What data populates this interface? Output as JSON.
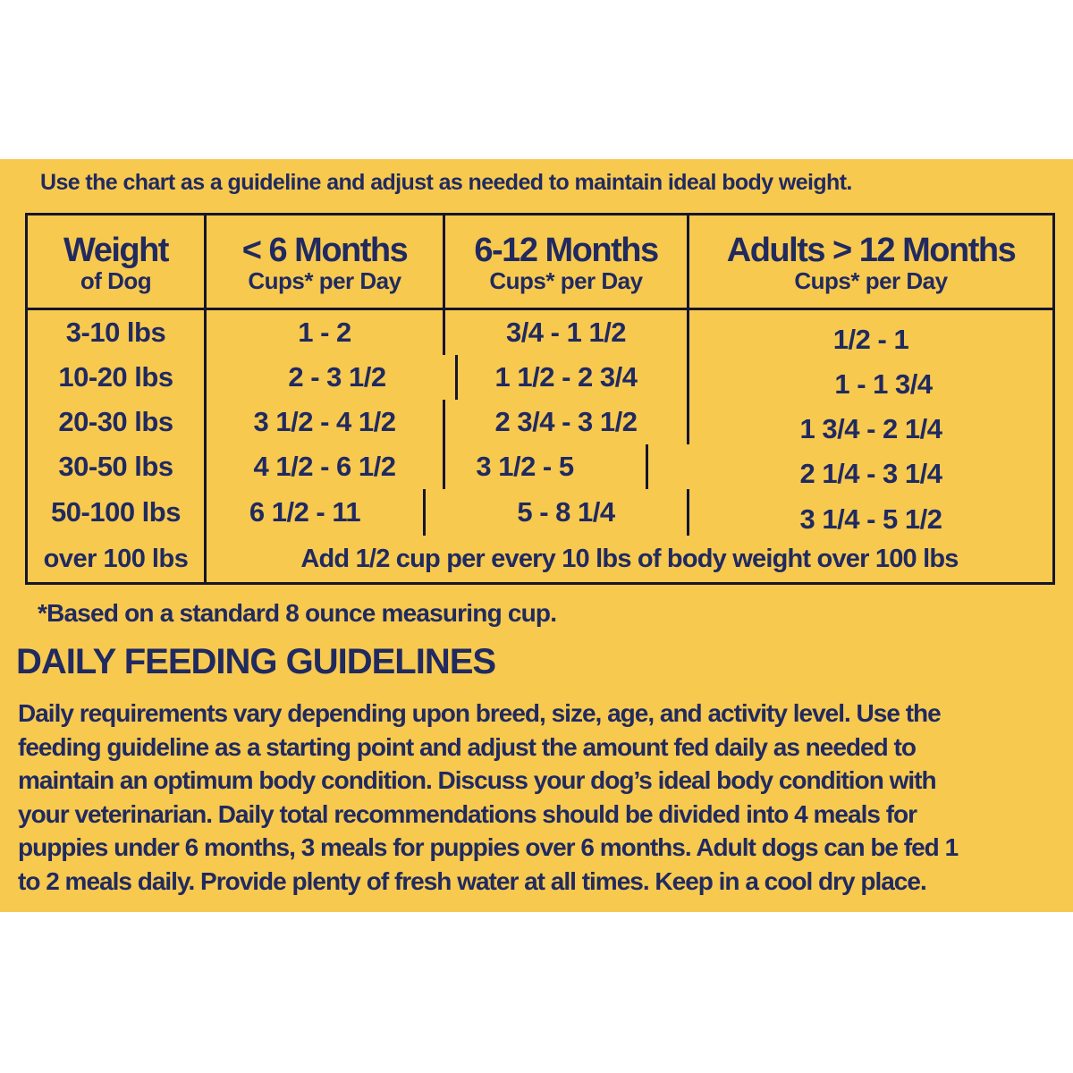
{
  "colors": {
    "panel_background": "#f8c94f",
    "text_navy": "#202a60",
    "table_border": "#15152b",
    "page_background": "#ffffff"
  },
  "instruction": "Use the chart as a guideline and adjust as needed to maintain ideal body weight.",
  "table": {
    "columns": [
      {
        "title": "Weight",
        "subtitle": "of Dog"
      },
      {
        "title": "< 6 Months",
        "subtitle": "Cups* per Day"
      },
      {
        "title": "6-12 Months",
        "subtitle": "Cups* per Day"
      },
      {
        "title": "Adults > 12 Months",
        "subtitle": "Cups* per Day"
      }
    ],
    "rows": [
      {
        "weight": "3-10 lbs",
        "under_6_months": "1 - 2",
        "months_6_12": "3/4 - 1 1/2",
        "adults_over_12": "1/2 - 1"
      },
      {
        "weight": "10-20 lbs",
        "under_6_months": "2 - 3 1/2",
        "months_6_12": "1 1/2 - 2 3/4",
        "adults_over_12": "1 - 1 3/4"
      },
      {
        "weight": "20-30 lbs",
        "under_6_months": "3 1/2 - 4 1/2",
        "months_6_12": "2 3/4 - 3 1/2",
        "adults_over_12": "1 3/4 - 2 1/4"
      },
      {
        "weight": "30-50 lbs",
        "under_6_months": "4 1/2 - 6 1/2",
        "months_6_12": "3 1/2 - 5",
        "adults_over_12": "2 1/4 - 3 1/4"
      },
      {
        "weight": "50-100 lbs",
        "under_6_months": "6 1/2 - 11",
        "months_6_12": "5 - 8 1/4",
        "adults_over_12": "3 1/4 - 5 1/2"
      }
    ],
    "footer_row": {
      "weight": "over 100 lbs",
      "note": "Add 1/2 cup per every 10 lbs of body weight over 100 lbs"
    }
  },
  "footnote": "*Based on a standard 8 ounce measuring cup.",
  "section": {
    "title": "DAILY FEEDING GUIDELINES",
    "lines": [
      "Daily requirements vary depending upon breed, size, age, and activity level. Use the",
      "feeding guideline as a starting point and adjust the amount fed daily as needed to",
      "maintain an optimum body condition. Discuss your dog’s ideal body condition with",
      "your veterinarian. Daily total recommendations should be divided into 4 meals for",
      "puppies under 6 months, 3 meals for puppies over 6 months. Adult dogs can be fed 1",
      "to 2 meals daily. Provide plenty of fresh water at all times. Keep in a cool dry place."
    ]
  }
}
